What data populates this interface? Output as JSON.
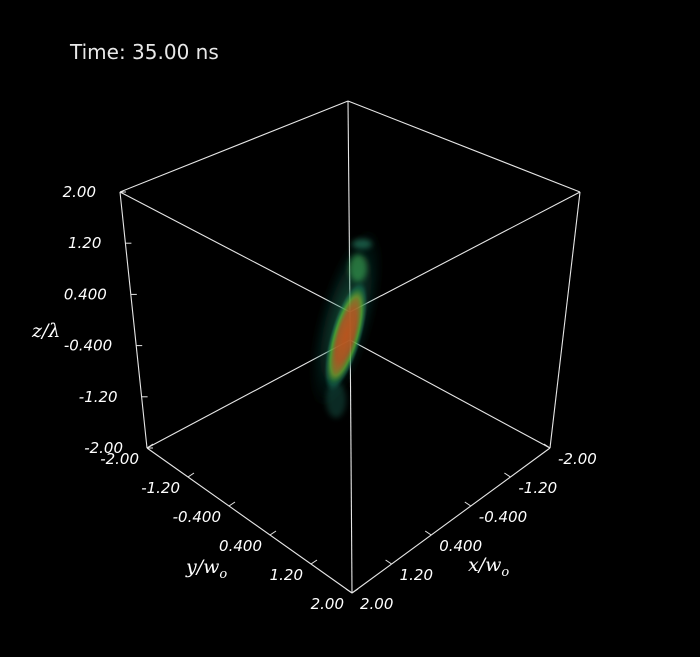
{
  "time_label": "Time: 35.00 ns",
  "chart_data": {
    "type": "volume-render-3d",
    "axes": {
      "x": {
        "label_base": "x/w",
        "label_sub": "o",
        "range": [
          -2.0,
          2.0
        ],
        "ticks": [
          "-2.00",
          "-1.20",
          "-0.400",
          "0.400",
          "1.20",
          "2.00"
        ]
      },
      "y": {
        "label_base": "y/w",
        "label_sub": "o",
        "range": [
          -2.0,
          2.0
        ],
        "ticks": [
          "-2.00",
          "-1.20",
          "-0.400",
          "0.400",
          "1.20",
          "2.00"
        ]
      },
      "z": {
        "label": "z/λ",
        "range": [
          -2.0,
          2.0
        ],
        "ticks": [
          "2.00",
          "1.20",
          "0.400",
          "-0.400",
          "-1.20",
          "-2.00"
        ]
      }
    },
    "colors": {
      "background": "#000000",
      "frame": "#e6e6e6",
      "low": "#1a6a5a",
      "mid": "#3fbf3a",
      "high": "#c0501a"
    },
    "grid": false,
    "legend": "none"
  }
}
